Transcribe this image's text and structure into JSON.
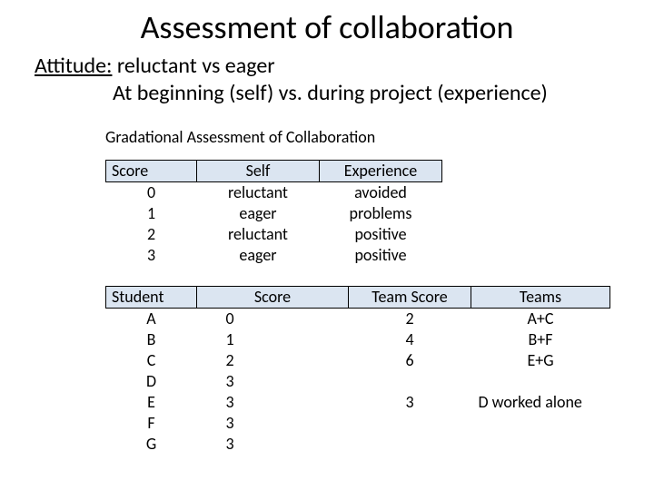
{
  "title": "Assessment of collaboration",
  "attitude": {
    "label": "Attitude:",
    "line1_rest": " reluctant vs  eager",
    "line2": "At beginning (self)   vs.    during project (experience)"
  },
  "section_header": "Gradational Assessment of Collaboration",
  "colors": {
    "header_fill": "#dbe5f1",
    "header_border": "#000000",
    "background": "#ffffff",
    "text": "#000000"
  },
  "table1": {
    "headers": [
      "Score",
      "Self",
      "Experience"
    ],
    "rows": [
      [
        "0",
        "reluctant",
        "avoided"
      ],
      [
        "1",
        "eager",
        "problems"
      ],
      [
        "2",
        "reluctant",
        "positive"
      ],
      [
        "3",
        "eager",
        "positive"
      ]
    ]
  },
  "table2": {
    "headers": [
      "Student",
      "Score",
      "Team Score",
      "Teams"
    ],
    "rows": [
      [
        "A",
        "0",
        "2",
        "A+C"
      ],
      [
        "B",
        "1",
        "4",
        "B+F"
      ],
      [
        "C",
        "2",
        "6",
        "E+G"
      ],
      [
        "D",
        "3",
        "",
        ""
      ],
      [
        "E",
        "3",
        "3",
        "D worked alone"
      ],
      [
        "F",
        "3",
        "",
        ""
      ],
      [
        "G",
        "3",
        "",
        ""
      ]
    ]
  }
}
